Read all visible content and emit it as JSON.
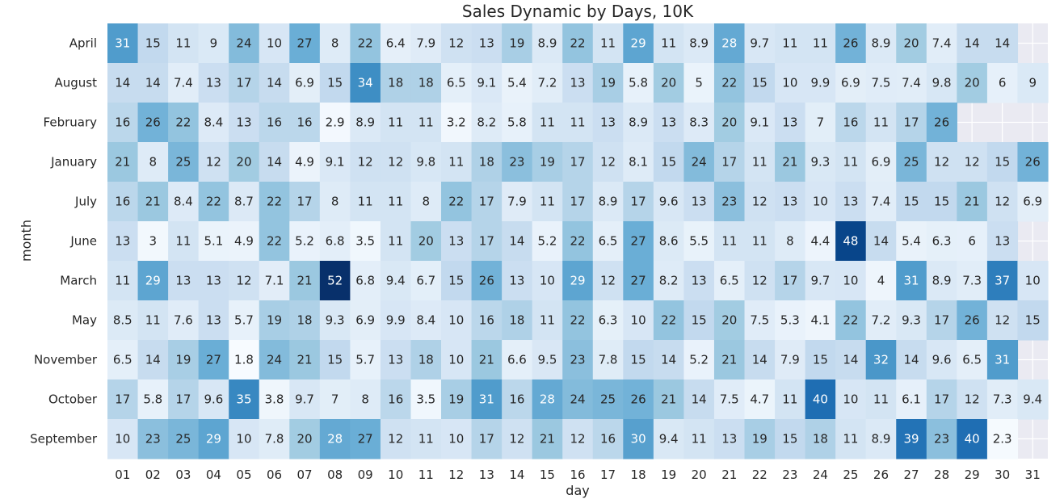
{
  "chart_data": {
    "type": "heatmap",
    "title": "Sales Dynamic by Days, 10K",
    "xlabel": "day",
    "ylabel": "month",
    "x": [
      "01",
      "02",
      "03",
      "04",
      "05",
      "06",
      "07",
      "08",
      "09",
      "10",
      "11",
      "12",
      "13",
      "14",
      "15",
      "16",
      "17",
      "18",
      "19",
      "20",
      "21",
      "22",
      "23",
      "24",
      "25",
      "26",
      "27",
      "28",
      "29",
      "30",
      "31"
    ],
    "y": [
      "April",
      "August",
      "February",
      "January",
      "July",
      "June",
      "March",
      "May",
      "November",
      "October",
      "September"
    ],
    "values": [
      [
        31,
        15,
        11,
        9,
        24,
        10,
        27,
        8,
        22,
        6.4,
        7.9,
        12,
        13,
        19,
        8.9,
        22,
        11,
        29,
        11,
        8.9,
        28,
        9.7,
        11,
        11,
        26,
        8.9,
        20,
        7.4,
        14,
        14,
        null
      ],
      [
        14,
        14,
        7.4,
        13,
        17,
        14,
        6.9,
        15,
        34,
        18,
        18,
        6.5,
        9.1,
        5.4,
        7.2,
        13,
        19,
        5.8,
        20,
        5,
        22,
        15,
        10,
        9.9,
        6.9,
        7.5,
        7.4,
        9.8,
        20,
        6,
        9
      ],
      [
        16,
        26,
        22,
        8.4,
        13,
        16,
        16,
        2.9,
        8.9,
        11,
        11,
        3.2,
        8.2,
        5.8,
        11,
        11,
        13,
        8.9,
        13,
        8.3,
        20,
        9.1,
        13,
        7,
        16,
        11,
        17,
        26,
        null,
        null,
        null
      ],
      [
        21,
        8,
        25,
        12,
        20,
        14,
        4.9,
        9.1,
        12,
        12,
        9.8,
        11,
        18,
        23,
        19,
        17,
        12,
        8.1,
        15,
        24,
        17,
        11,
        21,
        9.3,
        11,
        6.9,
        25,
        12,
        12,
        15,
        26
      ],
      [
        16,
        21,
        8.4,
        22,
        8.7,
        22,
        17,
        8,
        11,
        11,
        8,
        22,
        17,
        7.9,
        11,
        17,
        8.9,
        17,
        9.6,
        13,
        23,
        12,
        13,
        10,
        13,
        7.4,
        15,
        15,
        21,
        12,
        6.9
      ],
      [
        13,
        3,
        11,
        5.1,
        4.9,
        22,
        5.2,
        6.8,
        3.5,
        11,
        20,
        13,
        17,
        14,
        5.2,
        22,
        6.5,
        27,
        8.6,
        5.5,
        11,
        11,
        8,
        4.4,
        48,
        14,
        5.4,
        6.3,
        6,
        13,
        null
      ],
      [
        11,
        29,
        13,
        13,
        12,
        7.1,
        21,
        52,
        6.8,
        9.4,
        6.7,
        15,
        26,
        13,
        10,
        29,
        12,
        27,
        8.2,
        13,
        6.5,
        12,
        17,
        9.7,
        10,
        4,
        31,
        8.9,
        7.3,
        37,
        10
      ],
      [
        8.5,
        11,
        7.6,
        13,
        5.7,
        19,
        18,
        9.3,
        6.9,
        9.9,
        8.4,
        10,
        16,
        18,
        11,
        22,
        6.3,
        10,
        22,
        15,
        20,
        7.5,
        5.3,
        4.1,
        22,
        7.2,
        9.3,
        17,
        26,
        12,
        15
      ],
      [
        6.5,
        14,
        19,
        27,
        1.8,
        24,
        21,
        15,
        5.7,
        13,
        18,
        10,
        21,
        6.6,
        9.5,
        23,
        7.8,
        15,
        14,
        5.2,
        21,
        14,
        7.9,
        15,
        14,
        32,
        14,
        9.6,
        6.5,
        31,
        null
      ],
      [
        17,
        5.8,
        17,
        9.6,
        35,
        3.8,
        9.7,
        7,
        8,
        16,
        3.5,
        19,
        31,
        16,
        28,
        24,
        25,
        26,
        21,
        14,
        7.5,
        4.7,
        11,
        40,
        10,
        11,
        6.1,
        17,
        12,
        7.3,
        9.4
      ],
      [
        10,
        23,
        25,
        29,
        10,
        7.8,
        20,
        28,
        27,
        12,
        11,
        10,
        17,
        12,
        21,
        12,
        16,
        30,
        9.4,
        11,
        13,
        19,
        15,
        18,
        11,
        8.9,
        39,
        23,
        40,
        2.3,
        null
      ]
    ],
    "vmin": 1.8,
    "vmax": 52,
    "colormap": "Blues",
    "missing_color": "#EAEAF2",
    "legend": "none"
  }
}
